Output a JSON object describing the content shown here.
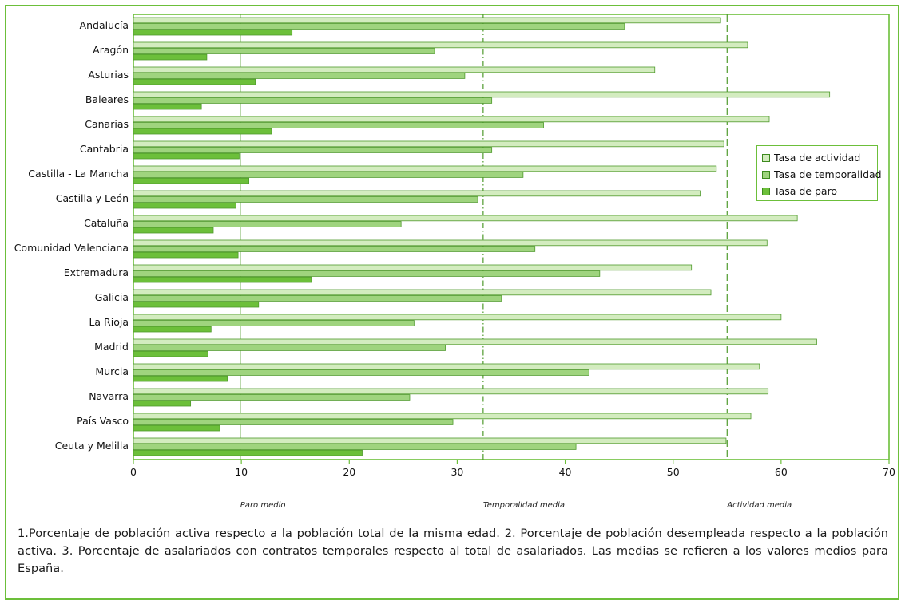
{
  "chart_data": {
    "type": "bar",
    "orientation": "horizontal",
    "categories": [
      "Andalucía",
      "Aragón",
      "Asturias",
      "Baleares",
      "Canarias",
      "Cantabria",
      "Castilla - La Mancha",
      "Castilla y León",
      "Cataluña",
      "Comunidad Valenciana",
      "Extremadura",
      "Galicia",
      "La Rioja",
      "Madrid",
      "Murcia",
      "Navarra",
      "País Vasco",
      "Ceuta y Melilla"
    ],
    "series": [
      {
        "name": "Tasa de actividad",
        "color": "#d3ecbf",
        "values": [
          54.4,
          56.9,
          48.3,
          64.5,
          58.9,
          54.7,
          54.0,
          52.5,
          61.5,
          58.7,
          51.7,
          53.5,
          60.0,
          63.3,
          58.0,
          58.8,
          57.2,
          54.9
        ]
      },
      {
        "name": "Tasa de temporalidad",
        "color": "#9fd47e",
        "values": [
          45.5,
          27.9,
          30.7,
          33.2,
          38.0,
          33.2,
          36.1,
          31.9,
          24.8,
          37.2,
          43.2,
          34.1,
          26.0,
          28.9,
          42.2,
          25.6,
          29.6,
          41.0
        ]
      },
      {
        "name": "Tasa de paro",
        "color": "#6cbf3a",
        "values": [
          14.7,
          6.8,
          11.3,
          6.3,
          12.8,
          9.8,
          10.7,
          9.5,
          7.4,
          9.7,
          16.5,
          11.6,
          7.2,
          6.9,
          8.7,
          5.3,
          8.0,
          21.2
        ]
      }
    ],
    "x_ticks": [
      "0",
      "10",
      "20",
      "30",
      "40",
      "50",
      "60",
      "70"
    ],
    "xlim": [
      0,
      70
    ],
    "reference_lines": [
      {
        "label": "Paro medio",
        "value": 9.9,
        "style": "solid"
      },
      {
        "label": "Temporalidad media",
        "value": 32.4,
        "style": "dash-dot"
      },
      {
        "label": "Actividad media",
        "value": 55.0,
        "style": "dashed"
      }
    ],
    "legend_position": "right",
    "grid": false
  },
  "footnote": "1.Porcentaje de población activa respecto a la población total de la misma edad. 2. Porcentaje de población desempleada respecto a la población activa. 3. Porcentaje de asalariados con contratos temporales respecto al total de asalariados. Las medias se refieren a los valores medios para España."
}
